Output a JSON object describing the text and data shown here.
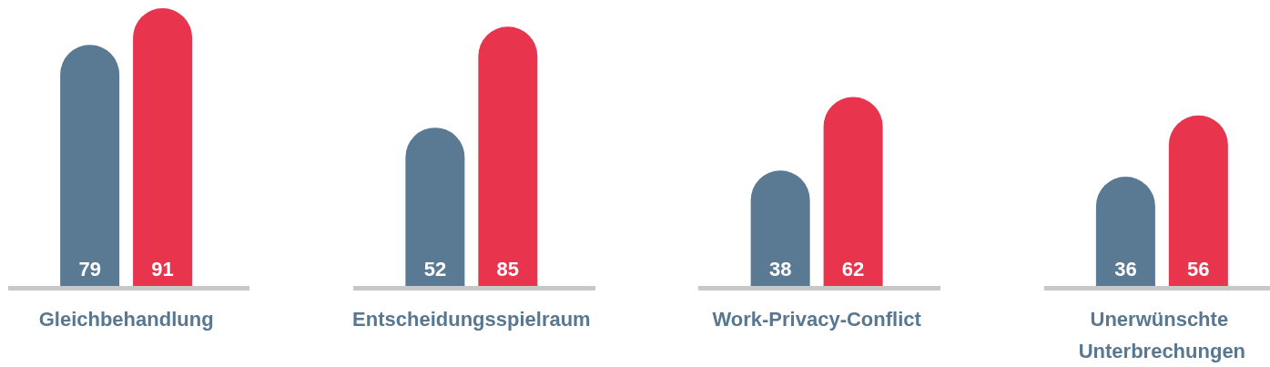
{
  "chart_data": {
    "type": "bar",
    "categories": [
      "Gleichbehandlung",
      "Entscheidungsspielraum",
      "Work-Privacy-Conflict",
      "Unerwünschte Unterbrechungen"
    ],
    "series": [
      {
        "color": "#5a7993",
        "values": [
          79,
          52,
          38,
          36
        ]
      },
      {
        "color": "#e8344d",
        "values": [
          91,
          85,
          62,
          56
        ]
      }
    ],
    "data_labels": true,
    "grid": false
  }
}
